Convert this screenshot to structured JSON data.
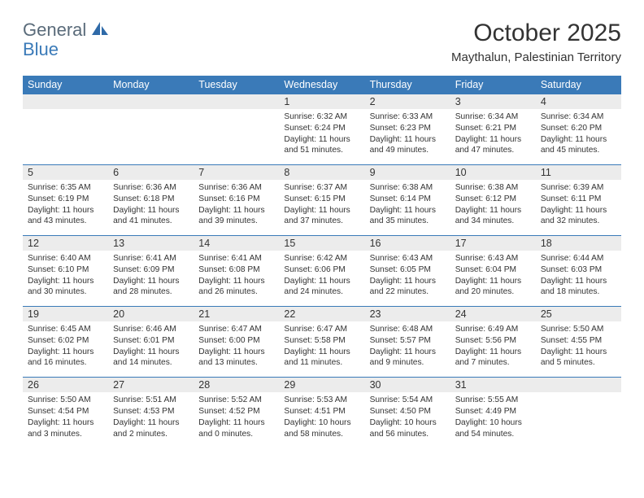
{
  "logo": {
    "text1": "General",
    "text2": "Blue"
  },
  "title": "October 2025",
  "location": "Maythalun, Palestinian Territory",
  "colors": {
    "header_bg": "#3a7ab8",
    "header_text": "#ffffff",
    "daynum_bg": "#ececec",
    "rule": "#3a7ab8",
    "logo_gray": "#5a6b7a",
    "logo_blue": "#3a7ab8"
  },
  "weekdays": [
    "Sunday",
    "Monday",
    "Tuesday",
    "Wednesday",
    "Thursday",
    "Friday",
    "Saturday"
  ],
  "weeks": [
    [
      null,
      null,
      null,
      {
        "n": "1",
        "sr": "6:32 AM",
        "ss": "6:24 PM",
        "dl": "11 hours and 51 minutes."
      },
      {
        "n": "2",
        "sr": "6:33 AM",
        "ss": "6:23 PM",
        "dl": "11 hours and 49 minutes."
      },
      {
        "n": "3",
        "sr": "6:34 AM",
        "ss": "6:21 PM",
        "dl": "11 hours and 47 minutes."
      },
      {
        "n": "4",
        "sr": "6:34 AM",
        "ss": "6:20 PM",
        "dl": "11 hours and 45 minutes."
      }
    ],
    [
      {
        "n": "5",
        "sr": "6:35 AM",
        "ss": "6:19 PM",
        "dl": "11 hours and 43 minutes."
      },
      {
        "n": "6",
        "sr": "6:36 AM",
        "ss": "6:18 PM",
        "dl": "11 hours and 41 minutes."
      },
      {
        "n": "7",
        "sr": "6:36 AM",
        "ss": "6:16 PM",
        "dl": "11 hours and 39 minutes."
      },
      {
        "n": "8",
        "sr": "6:37 AM",
        "ss": "6:15 PM",
        "dl": "11 hours and 37 minutes."
      },
      {
        "n": "9",
        "sr": "6:38 AM",
        "ss": "6:14 PM",
        "dl": "11 hours and 35 minutes."
      },
      {
        "n": "10",
        "sr": "6:38 AM",
        "ss": "6:12 PM",
        "dl": "11 hours and 34 minutes."
      },
      {
        "n": "11",
        "sr": "6:39 AM",
        "ss": "6:11 PM",
        "dl": "11 hours and 32 minutes."
      }
    ],
    [
      {
        "n": "12",
        "sr": "6:40 AM",
        "ss": "6:10 PM",
        "dl": "11 hours and 30 minutes."
      },
      {
        "n": "13",
        "sr": "6:41 AM",
        "ss": "6:09 PM",
        "dl": "11 hours and 28 minutes."
      },
      {
        "n": "14",
        "sr": "6:41 AM",
        "ss": "6:08 PM",
        "dl": "11 hours and 26 minutes."
      },
      {
        "n": "15",
        "sr": "6:42 AM",
        "ss": "6:06 PM",
        "dl": "11 hours and 24 minutes."
      },
      {
        "n": "16",
        "sr": "6:43 AM",
        "ss": "6:05 PM",
        "dl": "11 hours and 22 minutes."
      },
      {
        "n": "17",
        "sr": "6:43 AM",
        "ss": "6:04 PM",
        "dl": "11 hours and 20 minutes."
      },
      {
        "n": "18",
        "sr": "6:44 AM",
        "ss": "6:03 PM",
        "dl": "11 hours and 18 minutes."
      }
    ],
    [
      {
        "n": "19",
        "sr": "6:45 AM",
        "ss": "6:02 PM",
        "dl": "11 hours and 16 minutes."
      },
      {
        "n": "20",
        "sr": "6:46 AM",
        "ss": "6:01 PM",
        "dl": "11 hours and 14 minutes."
      },
      {
        "n": "21",
        "sr": "6:47 AM",
        "ss": "6:00 PM",
        "dl": "11 hours and 13 minutes."
      },
      {
        "n": "22",
        "sr": "6:47 AM",
        "ss": "5:58 PM",
        "dl": "11 hours and 11 minutes."
      },
      {
        "n": "23",
        "sr": "6:48 AM",
        "ss": "5:57 PM",
        "dl": "11 hours and 9 minutes."
      },
      {
        "n": "24",
        "sr": "6:49 AM",
        "ss": "5:56 PM",
        "dl": "11 hours and 7 minutes."
      },
      {
        "n": "25",
        "sr": "5:50 AM",
        "ss": "4:55 PM",
        "dl": "11 hours and 5 minutes."
      }
    ],
    [
      {
        "n": "26",
        "sr": "5:50 AM",
        "ss": "4:54 PM",
        "dl": "11 hours and 3 minutes."
      },
      {
        "n": "27",
        "sr": "5:51 AM",
        "ss": "4:53 PM",
        "dl": "11 hours and 2 minutes."
      },
      {
        "n": "28",
        "sr": "5:52 AM",
        "ss": "4:52 PM",
        "dl": "11 hours and 0 minutes."
      },
      {
        "n": "29",
        "sr": "5:53 AM",
        "ss": "4:51 PM",
        "dl": "10 hours and 58 minutes."
      },
      {
        "n": "30",
        "sr": "5:54 AM",
        "ss": "4:50 PM",
        "dl": "10 hours and 56 minutes."
      },
      {
        "n": "31",
        "sr": "5:55 AM",
        "ss": "4:49 PM",
        "dl": "10 hours and 54 minutes."
      },
      null
    ]
  ],
  "labels": {
    "sunrise": "Sunrise:",
    "sunset": "Sunset:",
    "daylight": "Daylight:"
  }
}
